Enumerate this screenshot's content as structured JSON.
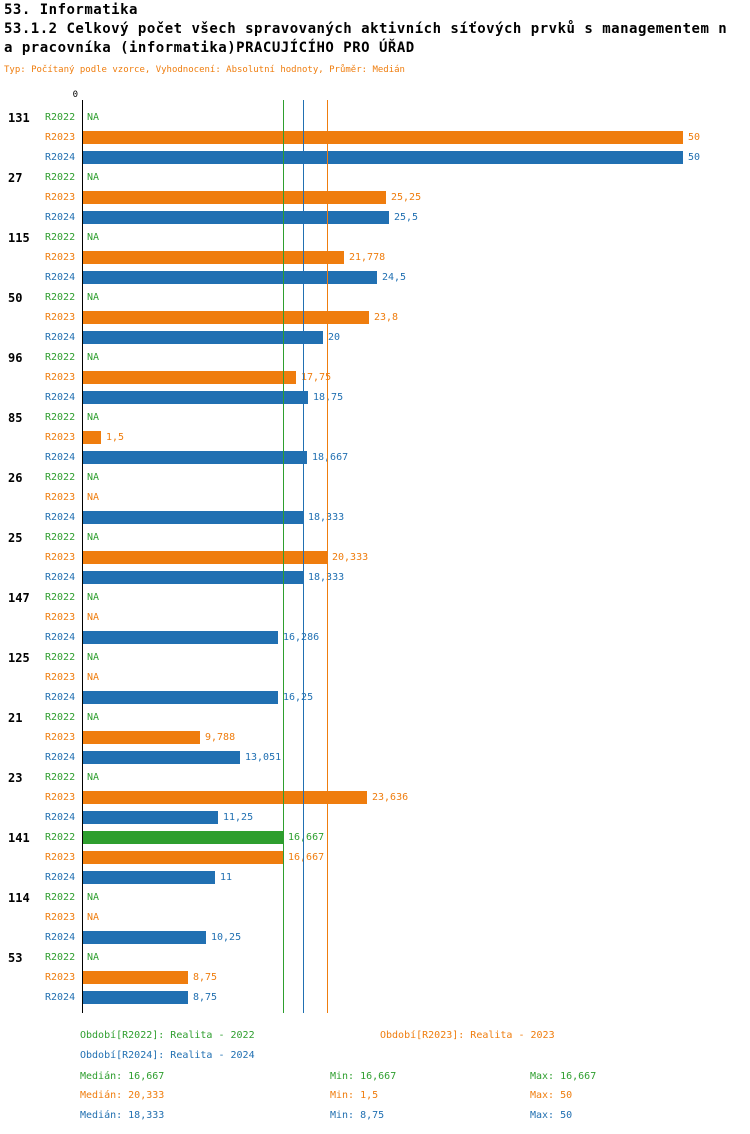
{
  "header": {
    "line1": "53. Informatika",
    "line2": "53.1.2 Celkový počet všech spravovaných aktivních síťových prvků s managementem n",
    "line3": "a pracovníka (informatika)PRACUJÍCÍHO PRO ÚŘAD",
    "subtitle": "Typ: Počítaný podle vzorce, Vyhodnocení: Absolutní hodnoty, Průměr: Medián"
  },
  "chart_data": {
    "type": "bar",
    "orientation": "horizontal",
    "title": "53.1.2 Celkový počet všech spravovaných aktivních síťových prvků s managementem na pracovníka (informatika) PRACUJÍCÍHO PRO ÚŘAD",
    "axis_zero_label": "0",
    "xlim": [
      0,
      50
    ],
    "series_labels": [
      "R2022",
      "R2023",
      "R2024"
    ],
    "colors": [
      "#2e9e2e",
      "#ef7d0e",
      "#2170b2"
    ],
    "groups": [
      {
        "id": "131",
        "values": [
          null,
          50,
          50
        ],
        "labels": [
          "NA",
          "50",
          "50"
        ]
      },
      {
        "id": "27",
        "values": [
          null,
          25.25,
          25.5
        ],
        "labels": [
          "NA",
          "25,25",
          "25,5"
        ]
      },
      {
        "id": "115",
        "values": [
          null,
          21.778,
          24.5
        ],
        "labels": [
          "NA",
          "21,778",
          "24,5"
        ]
      },
      {
        "id": "50",
        "values": [
          null,
          23.8,
          20
        ],
        "labels": [
          "NA",
          "23,8",
          "20"
        ]
      },
      {
        "id": "96",
        "values": [
          null,
          17.75,
          18.75
        ],
        "labels": [
          "NA",
          "17,75",
          "18,75"
        ]
      },
      {
        "id": "85",
        "values": [
          null,
          1.5,
          18.667
        ],
        "labels": [
          "NA",
          "1,5",
          "18,667"
        ]
      },
      {
        "id": "26",
        "values": [
          null,
          null,
          18.333
        ],
        "labels": [
          "NA",
          "NA",
          "18,333"
        ]
      },
      {
        "id": "25",
        "values": [
          null,
          20.333,
          18.333
        ],
        "labels": [
          "NA",
          "20,333",
          "18,333"
        ]
      },
      {
        "id": "147",
        "values": [
          null,
          null,
          16.286
        ],
        "labels": [
          "NA",
          "NA",
          "16,286"
        ]
      },
      {
        "id": "125",
        "values": [
          null,
          null,
          16.25
        ],
        "labels": [
          "NA",
          "NA",
          "16,25"
        ]
      },
      {
        "id": "21",
        "values": [
          null,
          9.788,
          13.051
        ],
        "labels": [
          "NA",
          "9,788",
          "13,051"
        ]
      },
      {
        "id": "23",
        "values": [
          null,
          23.636,
          11.25
        ],
        "labels": [
          "NA",
          "23,636",
          "11,25"
        ]
      },
      {
        "id": "141",
        "values": [
          16.667,
          16.667,
          11
        ],
        "labels": [
          "16,667",
          "16,667",
          "11"
        ]
      },
      {
        "id": "114",
        "values": [
          null,
          null,
          10.25
        ],
        "labels": [
          "NA",
          "NA",
          "10,25"
        ]
      },
      {
        "id": "53",
        "values": [
          null,
          8.75,
          8.75
        ],
        "labels": [
          "NA",
          "8,75",
          "8,75"
        ]
      }
    ],
    "median_lines": [
      {
        "series_index": 0,
        "value": 16.667
      },
      {
        "series_index": 2,
        "value": 18.333
      },
      {
        "series_index": 1,
        "value": 20.333
      }
    ]
  },
  "legend": {
    "items": [
      {
        "label": "Období[R2022]: Realita - 2022"
      },
      {
        "label": "Období[R2023]: Realita - 2023"
      },
      {
        "label": "Období[R2024]: Realita - 2024"
      }
    ]
  },
  "stats": {
    "rows": [
      {
        "median": "Medián: 16,667",
        "min": "Min: 16,667",
        "max": "Max: 16,667"
      },
      {
        "median": "Medián: 20,333",
        "min": "Min: 1,5",
        "max": "Max: 50"
      },
      {
        "median": "Medián: 18,333",
        "min": "Min: 8,75",
        "max": "Max: 50"
      }
    ]
  }
}
